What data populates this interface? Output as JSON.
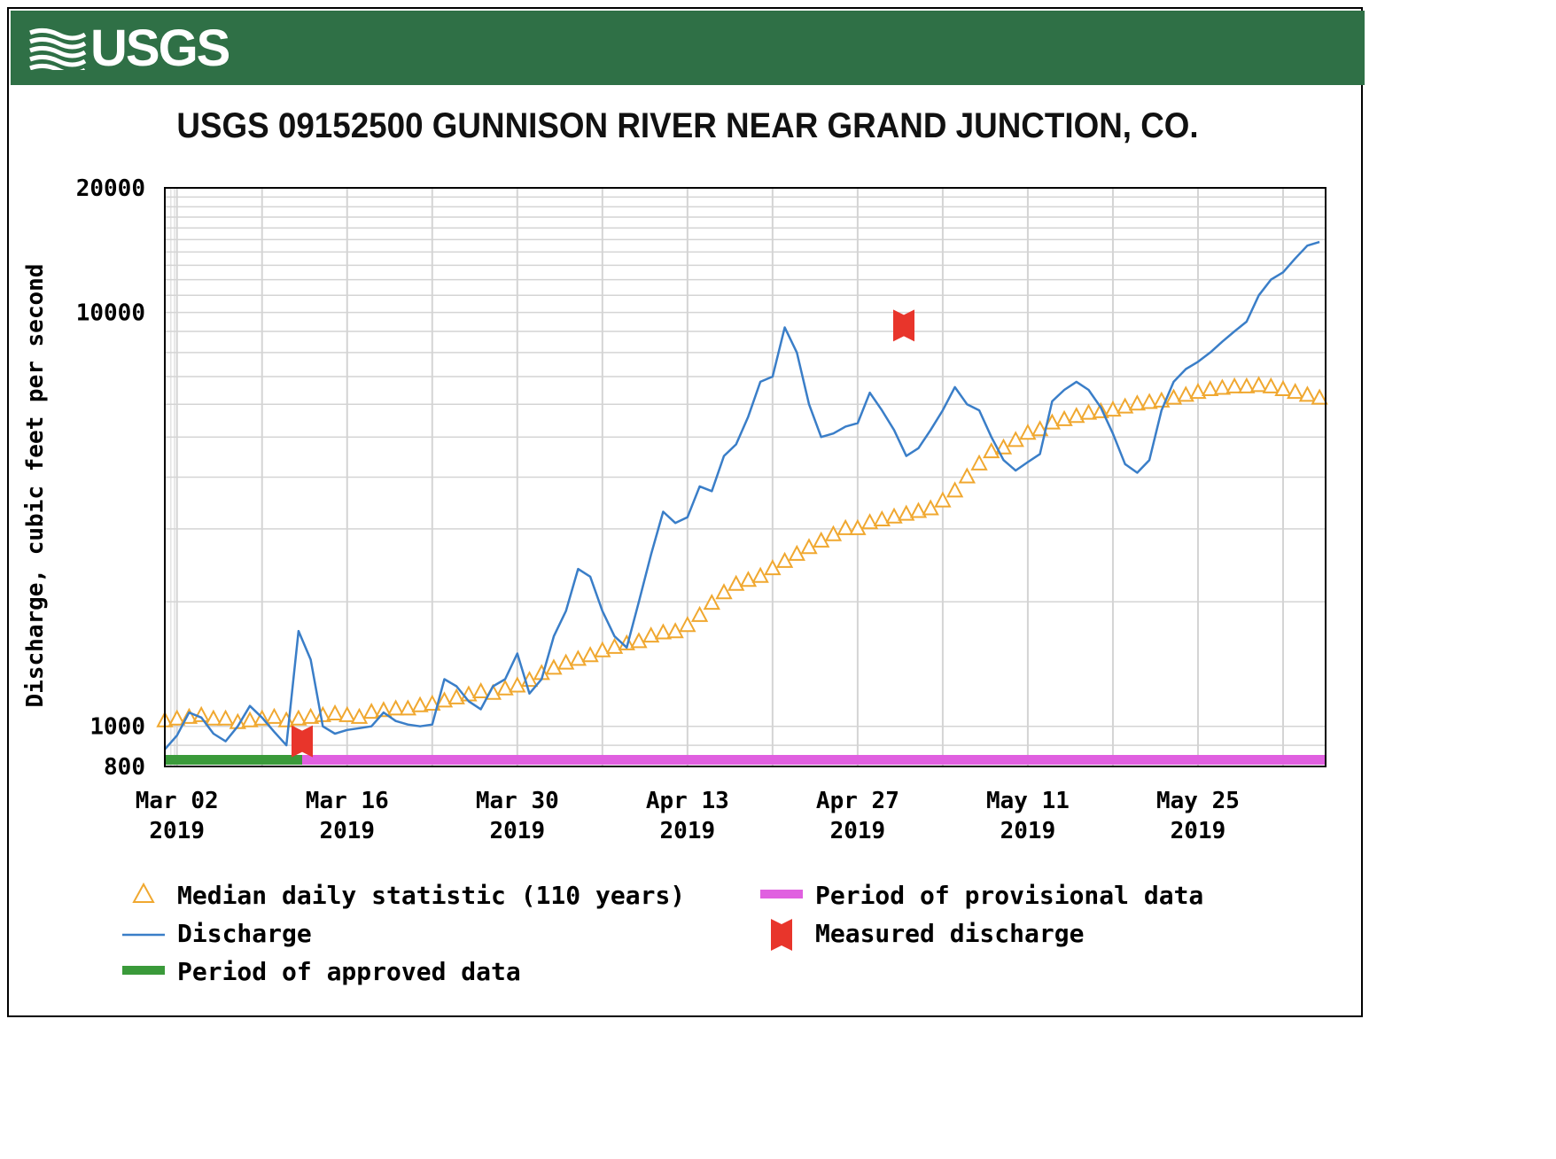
{
  "header": {
    "logo_text": "USGS",
    "bar_color": "#2f7046"
  },
  "chart_data": {
    "type": "line",
    "title": "USGS 09152500 GUNNISON RIVER NEAR GRAND JUNCTION, CO.",
    "ylabel": "Discharge, cubic feet per second",
    "xlabel": "",
    "y_scale": "log",
    "ylim": [
      800,
      20000
    ],
    "y_ticks": [
      {
        "value": 20000,
        "label": "20000"
      },
      {
        "value": 10000,
        "label": "10000"
      },
      {
        "value": 1000,
        "label": "1000"
      },
      {
        "value": 800,
        "label": "800"
      }
    ],
    "x_range_days": [
      0,
      95.5
    ],
    "x_ticks": [
      {
        "day": 1,
        "label_line1": "Mar 02",
        "label_line2": "2019"
      },
      {
        "day": 15,
        "label_line1": "Mar 16",
        "label_line2": "2019"
      },
      {
        "day": 29,
        "label_line1": "Mar 30",
        "label_line2": "2019"
      },
      {
        "day": 43,
        "label_line1": "Apr 13",
        "label_line2": "2019"
      },
      {
        "day": 57,
        "label_line1": "Apr 27",
        "label_line2": "2019"
      },
      {
        "day": 71,
        "label_line1": "May 11",
        "label_line2": "2019"
      },
      {
        "day": 85,
        "label_line1": "May 25",
        "label_line2": "2019"
      }
    ],
    "grid": true,
    "series": [
      {
        "name": "Discharge",
        "color": "#3a7ec8",
        "x": [
          0,
          1,
          2,
          3,
          4,
          5,
          6,
          7,
          8,
          9,
          10,
          11,
          12,
          13,
          14,
          15,
          16,
          17,
          18,
          19,
          20,
          21,
          22,
          23,
          24,
          25,
          26,
          27,
          28,
          29,
          30,
          31,
          32,
          33,
          34,
          35,
          36,
          37,
          38,
          39,
          40,
          41,
          42,
          43,
          44,
          45,
          46,
          47,
          48,
          49,
          50,
          51,
          52,
          53,
          54,
          55,
          56,
          57,
          58,
          59,
          60,
          61,
          62,
          63,
          64,
          65,
          66,
          67,
          68,
          69,
          70,
          71,
          72,
          73,
          74,
          75,
          76,
          77,
          78,
          79,
          80,
          81,
          82,
          83,
          84,
          85,
          86,
          87,
          88,
          89,
          90,
          91,
          92,
          93,
          94,
          95
        ],
        "y": [
          880,
          950,
          1080,
          1050,
          960,
          920,
          1000,
          1120,
          1050,
          970,
          900,
          1700,
          1450,
          1000,
          960,
          980,
          990,
          1000,
          1080,
          1030,
          1010,
          1000,
          1010,
          1300,
          1250,
          1150,
          1100,
          1250,
          1300,
          1500,
          1200,
          1300,
          1650,
          1900,
          2400,
          2300,
          1900,
          1650,
          1550,
          2000,
          2600,
          3300,
          3100,
          3200,
          3800,
          3700,
          4500,
          4800,
          5600,
          6800,
          7000,
          9200,
          8000,
          6000,
          5000,
          5100,
          5300,
          5400,
          6400,
          5800,
          5200,
          4500,
          4700,
          5200,
          5800,
          6600,
          6000,
          5800,
          5000,
          4400,
          4150,
          4350,
          4550,
          6100,
          6500,
          6800,
          6500,
          5900,
          5100,
          4300,
          4100,
          4400,
          5800,
          6800,
          7300,
          7600,
          8000,
          8500,
          9000,
          9500,
          11000,
          12000,
          12500,
          13500,
          14500,
          14800
        ]
      },
      {
        "name": "Median daily statistic (110 years)",
        "color": "#f0a830",
        "x": [
          0,
          1,
          2,
          3,
          4,
          5,
          6,
          7,
          8,
          9,
          10,
          11,
          12,
          13,
          14,
          15,
          16,
          17,
          18,
          19,
          20,
          21,
          22,
          23,
          24,
          25,
          26,
          27,
          28,
          29,
          30,
          31,
          32,
          33,
          34,
          35,
          36,
          37,
          38,
          39,
          40,
          41,
          42,
          43,
          44,
          45,
          46,
          47,
          48,
          49,
          50,
          51,
          52,
          53,
          54,
          55,
          56,
          57,
          58,
          59,
          60,
          61,
          62,
          63,
          64,
          65,
          66,
          67,
          68,
          69,
          70,
          71,
          72,
          73,
          74,
          75,
          76,
          77,
          78,
          79,
          80,
          81,
          82,
          83,
          84,
          85,
          86,
          87,
          88,
          89,
          90,
          91,
          92,
          93,
          94,
          95
        ],
        "y": [
          1030,
          1040,
          1050,
          1060,
          1040,
          1040,
          1020,
          1030,
          1040,
          1050,
          1030,
          1040,
          1050,
          1060,
          1070,
          1060,
          1050,
          1080,
          1090,
          1100,
          1100,
          1120,
          1130,
          1150,
          1170,
          1190,
          1210,
          1200,
          1230,
          1250,
          1290,
          1340,
          1380,
          1420,
          1450,
          1480,
          1520,
          1550,
          1580,
          1600,
          1650,
          1680,
          1690,
          1750,
          1850,
          1980,
          2100,
          2200,
          2250,
          2300,
          2400,
          2500,
          2600,
          2700,
          2800,
          2900,
          3000,
          3000,
          3100,
          3150,
          3200,
          3250,
          3300,
          3350,
          3500,
          3700,
          4000,
          4300,
          4600,
          4700,
          4900,
          5100,
          5200,
          5400,
          5500,
          5600,
          5700,
          5750,
          5800,
          5900,
          6000,
          6050,
          6100,
          6200,
          6300,
          6400,
          6500,
          6550,
          6600,
          6600,
          6650,
          6600,
          6500,
          6400,
          6300,
          6200
        ]
      }
    ],
    "measured_discharge": [
      {
        "day": 11.3,
        "value": 920
      },
      {
        "day": 60.8,
        "value": 9300
      }
    ],
    "periods": [
      {
        "name": "Period of approved data",
        "color": "#3a9a3a",
        "start_day": 0,
        "end_day": 11.3
      },
      {
        "name": "Period of provisional data",
        "color": "#e060e0",
        "start_day": 11.3,
        "end_day": 95.5
      }
    ],
    "legend": {
      "placement": "bottom",
      "entries": [
        {
          "label": "Median daily statistic (110 years)",
          "symbol": "triangle",
          "color": "#f0a830"
        },
        {
          "label": "Discharge",
          "symbol": "line",
          "color": "#3a7ec8"
        },
        {
          "label": "Period of approved data",
          "symbol": "bar",
          "color": "#3a9a3a"
        },
        {
          "label": "Period of provisional data",
          "symbol": "bar",
          "color": "#e060e0"
        },
        {
          "label": "Measured discharge",
          "symbol": "marker",
          "color": "#e8352b"
        }
      ]
    }
  }
}
